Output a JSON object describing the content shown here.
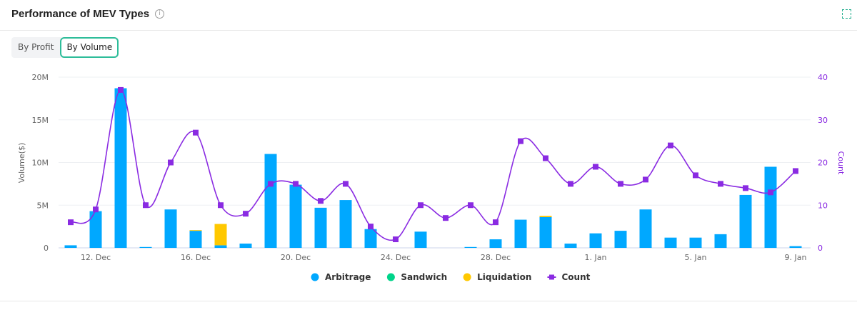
{
  "header": {
    "title": "Performance of MEV Types",
    "info_icon": "i"
  },
  "tabs": [
    {
      "label": "By Profit"
    },
    {
      "label": "By Volume",
      "active": true
    }
  ],
  "chart_data": {
    "type": "bar",
    "title": "Performance of MEV Types",
    "ylabel": "Volume($)",
    "y2label": "Count",
    "ylim": [
      0,
      20000000
    ],
    "y2lim": [
      0,
      40
    ],
    "yticks": [
      "0",
      "5M",
      "10M",
      "15M",
      "20M"
    ],
    "y2ticks": [
      "0",
      "10",
      "20",
      "30",
      "40"
    ],
    "xticks": [
      {
        "i": 1,
        "label": "12. Dec"
      },
      {
        "i": 5,
        "label": "16. Dec"
      },
      {
        "i": 9,
        "label": "20. Dec"
      },
      {
        "i": 13,
        "label": "24. Dec"
      },
      {
        "i": 17,
        "label": "28. Dec"
      },
      {
        "i": 21,
        "label": "1. Jan"
      },
      {
        "i": 25,
        "label": "5. Jan"
      },
      {
        "i": 29,
        "label": "9. Jan"
      }
    ],
    "categories": [
      "11 Dec",
      "12 Dec",
      "13 Dec",
      "14 Dec",
      "15 Dec",
      "16 Dec",
      "17 Dec",
      "18 Dec",
      "19 Dec",
      "20 Dec",
      "21 Dec",
      "22 Dec",
      "23 Dec",
      "24 Dec",
      "25 Dec",
      "26 Dec",
      "27 Dec",
      "28 Dec",
      "29 Dec",
      "30 Dec",
      "31 Dec",
      "1 Jan",
      "2 Jan",
      "3 Jan",
      "4 Jan",
      "5 Jan",
      "6 Jan",
      "7 Jan",
      "8 Jan",
      "9 Jan"
    ],
    "series": [
      {
        "name": "Arbitrage",
        "type": "bar",
        "color": "#00a8ff",
        "values": [
          0.3,
          4.3,
          18.7,
          0.1,
          4.5,
          2.0,
          0.3,
          0.5,
          11.0,
          7.4,
          4.7,
          5.6,
          2.2,
          0,
          1.9,
          0,
          0.1,
          1.0,
          3.3,
          3.6,
          0.5,
          1.7,
          2.0,
          4.5,
          1.2,
          1.2,
          1.6,
          6.2,
          9.5,
          0.2
        ],
        "unit": "M"
      },
      {
        "name": "Sandwich",
        "type": "bar",
        "color": "#00d48a",
        "values": [
          0,
          0,
          0,
          0,
          0,
          0,
          0,
          0,
          0,
          0,
          0,
          0,
          0,
          0,
          0,
          0,
          0,
          0,
          0,
          0,
          0,
          0,
          0,
          0,
          0,
          0,
          0,
          0,
          0,
          0
        ],
        "unit": "M"
      },
      {
        "name": "Liquidation",
        "type": "bar",
        "color": "#ffc800",
        "values": [
          0,
          0,
          0,
          0,
          0,
          0.08,
          2.5,
          0,
          0,
          0,
          0,
          0,
          0,
          0,
          0,
          0,
          0,
          0,
          0,
          0.15,
          0,
          0,
          0,
          0,
          0,
          0,
          0,
          0,
          0,
          0
        ],
        "unit": "M"
      },
      {
        "name": "Count",
        "type": "line",
        "color": "#8a2be2",
        "values": [
          6,
          9,
          37,
          10,
          20,
          27,
          10,
          8,
          15,
          15,
          11,
          15,
          5,
          2,
          10,
          7,
          10,
          6,
          25,
          21,
          15,
          19,
          15,
          16,
          24,
          17,
          15,
          14,
          13,
          18
        ]
      }
    ],
    "legend": "bottom"
  }
}
